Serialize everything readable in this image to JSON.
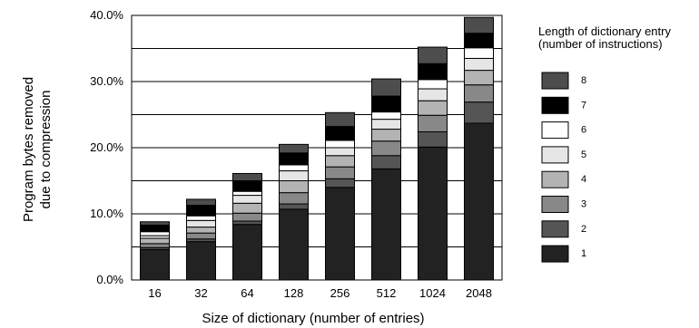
{
  "chart_data": {
    "type": "bar",
    "stacked": true,
    "categories": [
      "16",
      "32",
      "64",
      "128",
      "256",
      "512",
      "1024",
      "2048"
    ],
    "xlabel": "Size of dictionary (number of entries)",
    "ylabel": [
      "Program bytes removed",
      "due to compression"
    ],
    "ylim": [
      0,
      40
    ],
    "yticks": [
      "0.0%",
      "10.0%",
      "20.0%",
      "30.0%",
      "40.0%"
    ],
    "grid": true,
    "legend": {
      "title": [
        "Length of dictionary entry",
        "(number of instructions)"
      ],
      "placement": "right"
    },
    "series": [
      {
        "name": "1",
        "color": "#222222",
        "values": [
          4.6,
          5.8,
          8.4,
          10.7,
          14.0,
          16.8,
          20.1,
          23.7
        ]
      },
      {
        "name": "2",
        "color": "#555555",
        "values": [
          0.3,
          0.4,
          0.5,
          0.8,
          1.3,
          2.0,
          2.3,
          3.2
        ]
      },
      {
        "name": "3",
        "color": "#888888",
        "values": [
          0.6,
          0.9,
          1.2,
          1.7,
          1.8,
          2.2,
          2.5,
          2.6
        ]
      },
      {
        "name": "4",
        "color": "#b3b3b3",
        "values": [
          0.8,
          0.9,
          1.5,
          1.8,
          1.7,
          1.8,
          2.2,
          2.2
        ]
      },
      {
        "name": "5",
        "color": "#e6e6e6",
        "values": [
          0.4,
          1.0,
          1.2,
          1.5,
          1.2,
          1.5,
          1.8,
          1.8
        ]
      },
      {
        "name": "6",
        "color": "#ffffff",
        "values": [
          0.6,
          0.7,
          0.6,
          0.9,
          1.1,
          1.1,
          1.4,
          1.6
        ]
      },
      {
        "name": "7",
        "color": "#000000",
        "values": [
          1.0,
          1.6,
          1.6,
          1.8,
          2.1,
          2.4,
          2.4,
          2.2
        ]
      },
      {
        "name": "8",
        "color": "#4d4d4d",
        "values": [
          0.5,
          0.9,
          1.1,
          1.3,
          2.1,
          2.6,
          2.5,
          2.4
        ]
      }
    ]
  }
}
